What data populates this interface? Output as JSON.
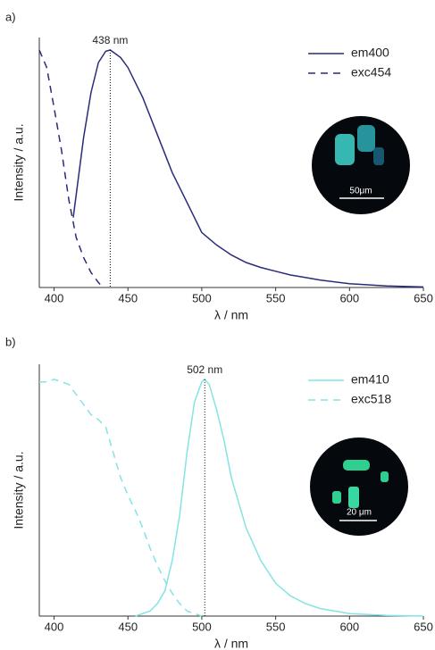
{
  "chart_data": [
    {
      "type": "line",
      "panel": "a)",
      "xlabel": "λ / nm",
      "ylabel": "Intensity / a.u.",
      "xlim": [
        390,
        650
      ],
      "xticks": [
        400,
        450,
        500,
        550,
        600,
        650
      ],
      "ylim": [
        0,
        1
      ],
      "legend": "upper right",
      "inset_scale": "50μm",
      "annotation": {
        "text": "438 nm",
        "x": 438,
        "y": 0.95
      },
      "series": [
        {
          "name": "em400",
          "color": "#2b2b7c",
          "dash": false,
          "x": [
            413,
            420,
            425,
            430,
            435,
            438,
            445,
            450,
            460,
            470,
            480,
            490,
            500,
            510,
            520,
            530,
            540,
            550,
            560,
            570,
            580,
            600,
            625,
            650
          ],
          "values": [
            0.28,
            0.6,
            0.78,
            0.9,
            0.945,
            0.95,
            0.92,
            0.88,
            0.76,
            0.61,
            0.46,
            0.34,
            0.22,
            0.17,
            0.13,
            0.1,
            0.08,
            0.065,
            0.05,
            0.04,
            0.03,
            0.015,
            0.006,
            0.002
          ]
        },
        {
          "name": "exc454",
          "color": "#2b2b7c",
          "dash": true,
          "x": [
            390,
            395,
            400,
            405,
            410,
            415,
            420,
            425,
            430,
            433
          ],
          "values": [
            0.95,
            0.88,
            0.72,
            0.55,
            0.35,
            0.2,
            0.12,
            0.06,
            0.02,
            0
          ]
        }
      ]
    },
    {
      "type": "line",
      "panel": "b)",
      "xlabel": "λ / nm",
      "ylabel": "Intensity / a.u.",
      "xlim": [
        390,
        650
      ],
      "xticks": [
        400,
        450,
        500,
        550,
        600,
        650
      ],
      "ylim": [
        0,
        1
      ],
      "legend": "upper right",
      "inset_scale": "20 μm",
      "annotation": {
        "text": "502 nm",
        "x": 502,
        "y": 0.94
      },
      "series": [
        {
          "name": "em410",
          "color": "#84e3e3",
          "dash": false,
          "x": [
            455,
            465,
            470,
            475,
            480,
            485,
            490,
            495,
            500,
            502,
            505,
            510,
            515,
            520,
            530,
            540,
            550,
            560,
            570,
            580,
            600,
            625,
            650
          ],
          "values": [
            0,
            0.02,
            0.05,
            0.1,
            0.22,
            0.4,
            0.65,
            0.85,
            0.93,
            0.94,
            0.92,
            0.82,
            0.7,
            0.55,
            0.35,
            0.22,
            0.13,
            0.08,
            0.05,
            0.03,
            0.01,
            0.003,
            0
          ]
        },
        {
          "name": "exc518",
          "color": "#84e3e3",
          "dash": true,
          "x": [
            390,
            395,
            400,
            405,
            410,
            415,
            420,
            425,
            430,
            435,
            440,
            445,
            450,
            455,
            460,
            465,
            470,
            475,
            480,
            485,
            490,
            495,
            500
          ],
          "values": [
            0.93,
            0.93,
            0.94,
            0.93,
            0.92,
            0.88,
            0.84,
            0.8,
            0.78,
            0.75,
            0.65,
            0.55,
            0.48,
            0.42,
            0.35,
            0.27,
            0.2,
            0.14,
            0.09,
            0.05,
            0.02,
            0.01,
            0
          ]
        }
      ]
    }
  ]
}
